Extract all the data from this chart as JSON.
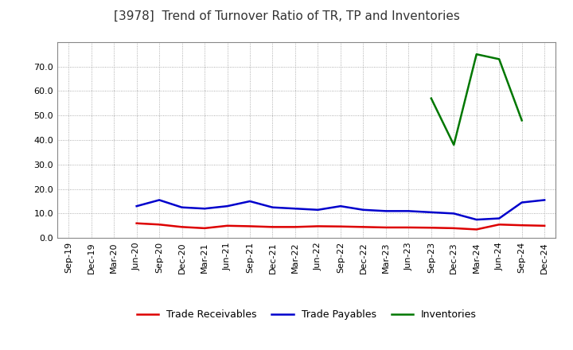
{
  "title": "[3978]  Trend of Turnover Ratio of TR, TP and Inventories",
  "x_labels": [
    "Sep-19",
    "Dec-19",
    "Mar-20",
    "Jun-20",
    "Sep-20",
    "Dec-20",
    "Mar-21",
    "Jun-21",
    "Sep-21",
    "Dec-21",
    "Mar-22",
    "Jun-22",
    "Sep-22",
    "Dec-22",
    "Mar-23",
    "Jun-23",
    "Sep-23",
    "Dec-23",
    "Mar-24",
    "Jun-24",
    "Sep-24",
    "Dec-24"
  ],
  "trade_receivables": [
    null,
    null,
    null,
    6.0,
    5.5,
    4.5,
    4.0,
    5.0,
    4.8,
    4.5,
    4.5,
    4.8,
    4.7,
    4.5,
    4.3,
    4.3,
    4.2,
    4.0,
    3.5,
    5.5,
    5.2,
    5.0
  ],
  "trade_payables": [
    null,
    null,
    null,
    13.0,
    15.5,
    12.5,
    12.0,
    13.0,
    15.0,
    12.5,
    12.0,
    11.5,
    13.0,
    11.5,
    11.0,
    11.0,
    10.5,
    10.0,
    7.5,
    8.0,
    14.5,
    15.5
  ],
  "inventories": [
    null,
    null,
    null,
    null,
    null,
    null,
    null,
    null,
    null,
    null,
    null,
    null,
    null,
    null,
    null,
    null,
    57.0,
    38.0,
    75.0,
    73.0,
    48.0,
    null
  ],
  "colors": {
    "trade_receivables": "#dd0000",
    "trade_payables": "#0000cc",
    "inventories": "#007700"
  },
  "ylim": [
    0,
    80
  ],
  "yticks": [
    0.0,
    10.0,
    20.0,
    30.0,
    40.0,
    50.0,
    60.0,
    70.0
  ],
  "legend_labels": [
    "Trade Receivables",
    "Trade Payables",
    "Inventories"
  ],
  "background_color": "#ffffff",
  "grid_color": "#999999",
  "title_fontsize": 11,
  "tick_fontsize": 8,
  "line_width": 1.8
}
